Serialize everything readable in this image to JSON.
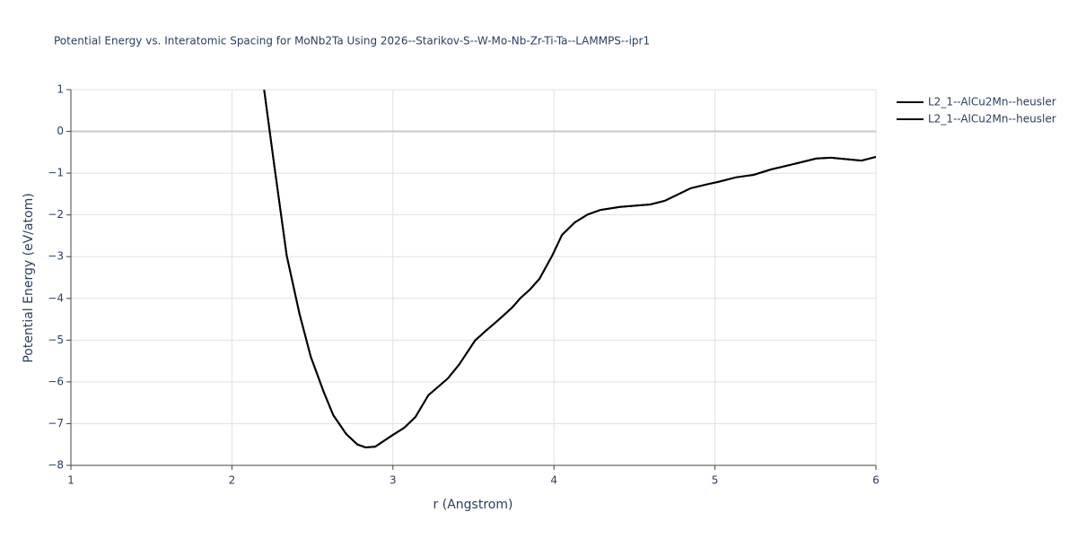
{
  "chart_data": {
    "type": "line",
    "title": "Potential Energy vs. Interatomic Spacing for MoNb2Ta Using 2026--Starikov-S--W-Mo-Nb-Zr-Ti-Ta--LAMMPS--ipr1",
    "x_label": "r (Angstrom)",
    "y_label": "Potential Energy (eV/atom)",
    "x": [
      2.2,
      2.26,
      2.34,
      2.42,
      2.49,
      2.57,
      2.63,
      2.71,
      2.78,
      2.83,
      2.89,
      3.0,
      3.07,
      3.14,
      3.22,
      3.34,
      3.41,
      3.51,
      3.57,
      3.66,
      3.74,
      3.79,
      3.85,
      3.91,
      3.99,
      4.05,
      4.13,
      4.21,
      4.29,
      4.41,
      4.6,
      4.69,
      4.77,
      4.85,
      4.96,
      5.02,
      5.13,
      5.24,
      5.35,
      5.47,
      5.63,
      5.72,
      5.91,
      6.0
    ],
    "series": [
      {
        "name": "L2_1--AlCu2Mn--heusler",
        "color": "#000000",
        "values": [
          1.0,
          -0.72,
          -2.97,
          -4.37,
          -5.4,
          -6.24,
          -6.8,
          -7.25,
          -7.5,
          -7.57,
          -7.55,
          -7.27,
          -7.1,
          -6.84,
          -6.32,
          -5.92,
          -5.59,
          -5.01,
          -4.8,
          -4.5,
          -4.22,
          -4.0,
          -3.79,
          -3.53,
          -2.97,
          -2.48,
          -2.18,
          -1.99,
          -1.88,
          -1.81,
          -1.75,
          -1.66,
          -1.51,
          -1.36,
          -1.26,
          -1.21,
          -1.1,
          -1.04,
          -0.91,
          -0.8,
          -0.65,
          -0.63,
          -0.7,
          -0.61
        ]
      },
      {
        "name": "L2_1--AlCu2Mn--heusler",
        "color": "#000000",
        "values": [
          1.0,
          -0.72,
          -2.97,
          -4.37,
          -5.4,
          -6.24,
          -6.8,
          -7.25,
          -7.5,
          -7.57,
          -7.55,
          -7.27,
          -7.1,
          -6.84,
          -6.32,
          -5.92,
          -5.59,
          -5.01,
          -4.8,
          -4.5,
          -4.22,
          -4.0,
          -3.79,
          -3.53,
          -2.97,
          -2.48,
          -2.18,
          -1.99,
          -1.88,
          -1.81,
          -1.75,
          -1.66,
          -1.51,
          -1.36,
          -1.26,
          -1.21,
          -1.1,
          -1.04,
          -0.91,
          -0.8,
          -0.65,
          -0.63,
          -0.7,
          -0.61
        ]
      }
    ],
    "xlim": [
      1,
      6
    ],
    "xticks": [
      1,
      2,
      3,
      4,
      5,
      6
    ],
    "ylim": [
      -8,
      1
    ],
    "yticks": [
      {
        "value": -8,
        "label": "−8"
      },
      {
        "value": -7,
        "label": "−7"
      },
      {
        "value": -6,
        "label": "−6"
      },
      {
        "value": -5,
        "label": "−5"
      },
      {
        "value": -4,
        "label": "−4"
      },
      {
        "value": -3,
        "label": "−3"
      },
      {
        "value": -2,
        "label": "−2"
      },
      {
        "value": -1,
        "label": "−1"
      },
      0,
      1
    ],
    "grid": true
  }
}
